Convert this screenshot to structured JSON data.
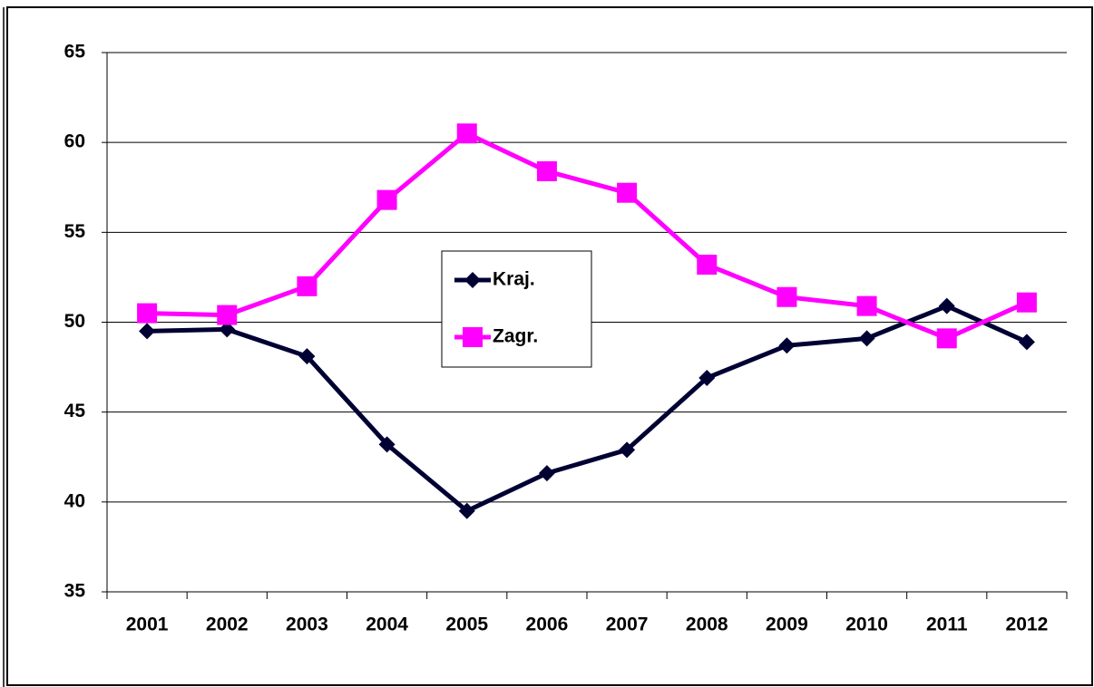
{
  "chart_data": {
    "type": "line",
    "categories": [
      "2001",
      "2002",
      "2003",
      "2004",
      "2005",
      "2006",
      "2007",
      "2008",
      "2009",
      "2010",
      "2011",
      "2012"
    ],
    "series": [
      {
        "name": "Kraj.",
        "color": "#000033",
        "marker": "diamond",
        "values": [
          49.5,
          49.6,
          48.1,
          43.2,
          39.5,
          41.6,
          42.9,
          46.9,
          48.7,
          49.1,
          50.9,
          48.9
        ]
      },
      {
        "name": "Zagr.",
        "color": "#ff00ff",
        "marker": "square",
        "values": [
          50.5,
          50.4,
          52.0,
          56.8,
          60.5,
          58.4,
          57.2,
          53.2,
          51.4,
          50.9,
          49.1,
          51.1
        ]
      }
    ],
    "ylim": [
      35,
      65
    ],
    "yticks": [
      35,
      40,
      45,
      50,
      55,
      60,
      65
    ],
    "grid": true,
    "legend": "center"
  }
}
